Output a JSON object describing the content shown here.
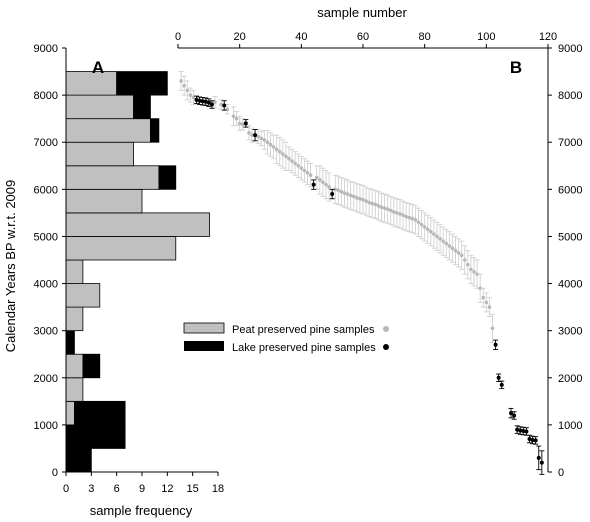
{
  "chart_data": [
    {
      "panel": "A",
      "type": "bar",
      "orientation": "horizontal",
      "stacked": true,
      "ylabel": "Calendar Years BP w.r.t. 2009",
      "xlabel": "sample frequency",
      "xlim": [
        0,
        18
      ],
      "xticks": [
        "0",
        "3",
        "6",
        "9",
        "12",
        "15",
        "18"
      ],
      "ylim": [
        0,
        9000
      ],
      "yticks": [
        "0",
        "1000",
        "2000",
        "3000",
        "4000",
        "5000",
        "6000",
        "7000",
        "8000",
        "9000"
      ],
      "bin_width": 500,
      "bins": [
        0,
        500,
        1000,
        1500,
        2000,
        2500,
        3000,
        3500,
        4000,
        4500,
        5000,
        5500,
        6000,
        6500,
        7000,
        7500,
        8000
      ],
      "series": [
        {
          "name": "Peat preserved pine samples",
          "color": "#c0c0c0",
          "values": [
            0,
            0,
            1,
            2,
            2,
            0,
            2,
            4,
            2,
            13,
            17,
            9,
            11,
            8,
            10,
            8,
            6
          ]
        },
        {
          "name": "Lake preserved pine samples",
          "color": "#000000",
          "values": [
            3,
            7,
            6,
            0,
            2,
            1,
            0,
            0,
            0,
            0,
            0,
            0,
            2,
            0,
            1,
            2,
            6
          ]
        }
      ]
    },
    {
      "panel": "B",
      "type": "scatter",
      "xlabel": "sample number",
      "xlim": [
        0,
        120
      ],
      "xticks": [
        "0",
        "20",
        "40",
        "60",
        "80",
        "100",
        "120"
      ],
      "ylim": [
        0,
        9000
      ],
      "yticks": [
        "0",
        "1000",
        "2000",
        "3000",
        "4000",
        "5000",
        "6000",
        "7000",
        "8000",
        "9000"
      ],
      "series": [
        {
          "name": "Peat preserved pine samples",
          "color": "#b8b8b8",
          "x": [
            1,
            2,
            3,
            4,
            5,
            12,
            14,
            16,
            18,
            19,
            20,
            21,
            23,
            24,
            26,
            27,
            28,
            29,
            30,
            31,
            32,
            33,
            34,
            35,
            36,
            37,
            38,
            39,
            40,
            41,
            42,
            43,
            45,
            46,
            47,
            48,
            49,
            51,
            52,
            53,
            54,
            55,
            56,
            57,
            58,
            59,
            60,
            61,
            62,
            63,
            64,
            65,
            66,
            67,
            68,
            69,
            70,
            71,
            72,
            73,
            74,
            75,
            76,
            77,
            78,
            79,
            80,
            81,
            82,
            83,
            84,
            85,
            86,
            87,
            88,
            89,
            90,
            91,
            92,
            93,
            94,
            95,
            96,
            97,
            98,
            99,
            100,
            101,
            102
          ],
          "y": [
            8300,
            8200,
            8100,
            8000,
            7950,
            7850,
            7800,
            7700,
            7550,
            7500,
            7400,
            7380,
            7200,
            7150,
            7120,
            7080,
            7050,
            7000,
            6950,
            6900,
            6850,
            6800,
            6750,
            6700,
            6650,
            6600,
            6550,
            6500,
            6450,
            6400,
            6350,
            6300,
            6250,
            6200,
            6150,
            6100,
            6050,
            6000,
            5980,
            5950,
            5920,
            5900,
            5870,
            5850,
            5820,
            5800,
            5780,
            5750,
            5720,
            5700,
            5680,
            5650,
            5620,
            5600,
            5580,
            5550,
            5520,
            5500,
            5480,
            5450,
            5420,
            5400,
            5380,
            5350,
            5300,
            5250,
            5200,
            5150,
            5100,
            5050,
            5000,
            4950,
            4900,
            4850,
            4800,
            4750,
            4700,
            4650,
            4600,
            4500,
            4400,
            4300,
            4250,
            4200,
            3900,
            3700,
            3600,
            3500,
            3050
          ],
          "err": [
            200,
            200,
            200,
            150,
            150,
            120,
            100,
            100,
            200,
            150,
            150,
            120,
            150,
            150,
            150,
            150,
            200,
            250,
            250,
            250,
            300,
            300,
            300,
            300,
            250,
            250,
            250,
            250,
            250,
            250,
            250,
            250,
            250,
            300,
            300,
            300,
            300,
            300,
            300,
            300,
            300,
            300,
            300,
            300,
            300,
            300,
            300,
            300,
            300,
            300,
            300,
            300,
            300,
            300,
            300,
            300,
            300,
            300,
            300,
            300,
            300,
            300,
            300,
            300,
            300,
            300,
            300,
            300,
            300,
            300,
            300,
            300,
            300,
            300,
            300,
            300,
            300,
            300,
            300,
            300,
            300,
            300,
            300,
            300,
            300,
            200,
            200,
            200,
            300
          ]
        },
        {
          "name": "Lake preserved pine samples",
          "color": "#000000",
          "x": [
            6,
            7,
            8,
            9,
            10,
            11,
            15,
            22,
            25,
            44,
            50,
            103,
            104,
            105,
            108,
            109,
            110,
            111,
            112,
            113,
            114,
            115,
            116,
            117,
            118
          ],
          "y": [
            7900,
            7880,
            7870,
            7860,
            7840,
            7800,
            7780,
            7400,
            7150,
            6100,
            5900,
            2700,
            2000,
            1850,
            1250,
            1200,
            900,
            880,
            870,
            860,
            700,
            680,
            670,
            300,
            200
          ],
          "err": [
            80,
            80,
            80,
            80,
            80,
            80,
            100,
            80,
            120,
            100,
            100,
            100,
            80,
            80,
            100,
            80,
            80,
            80,
            80,
            80,
            80,
            80,
            80,
            250,
            250
          ]
        }
      ]
    }
  ],
  "panel_labels": {
    "a": "A",
    "b": "B"
  },
  "legend": {
    "peat_label": "Peat preserved pine samples",
    "lake_label": "Lake preserved pine samples"
  }
}
